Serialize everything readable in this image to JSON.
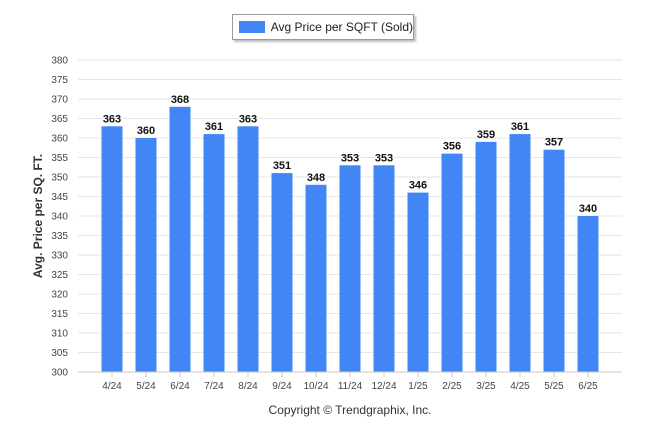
{
  "chart_data": {
    "type": "bar",
    "categories": [
      "4/24",
      "5/24",
      "6/24",
      "7/24",
      "8/24",
      "9/24",
      "10/24",
      "11/24",
      "12/24",
      "1/25",
      "2/25",
      "3/25",
      "4/25",
      "5/25",
      "6/25"
    ],
    "series": [
      {
        "name": "Avg Price per SQFT (Sold)",
        "values": [
          363,
          360,
          368,
          361,
          363,
          351,
          348,
          353,
          353,
          346,
          356,
          359,
          361,
          357,
          340
        ]
      }
    ],
    "ylabel": "Avg. Price per SQ. FT.",
    "ylim": [
      300,
      380
    ],
    "yticks": [
      300,
      305,
      310,
      315,
      320,
      325,
      330,
      335,
      340,
      345,
      350,
      355,
      360,
      365,
      370,
      375,
      380
    ],
    "grid": true,
    "legend_placement": "top-center",
    "data_labels": true,
    "bar_color": "#4285f4"
  },
  "footer": {
    "copyright": "Copyright © Trendgraphix, Inc."
  }
}
